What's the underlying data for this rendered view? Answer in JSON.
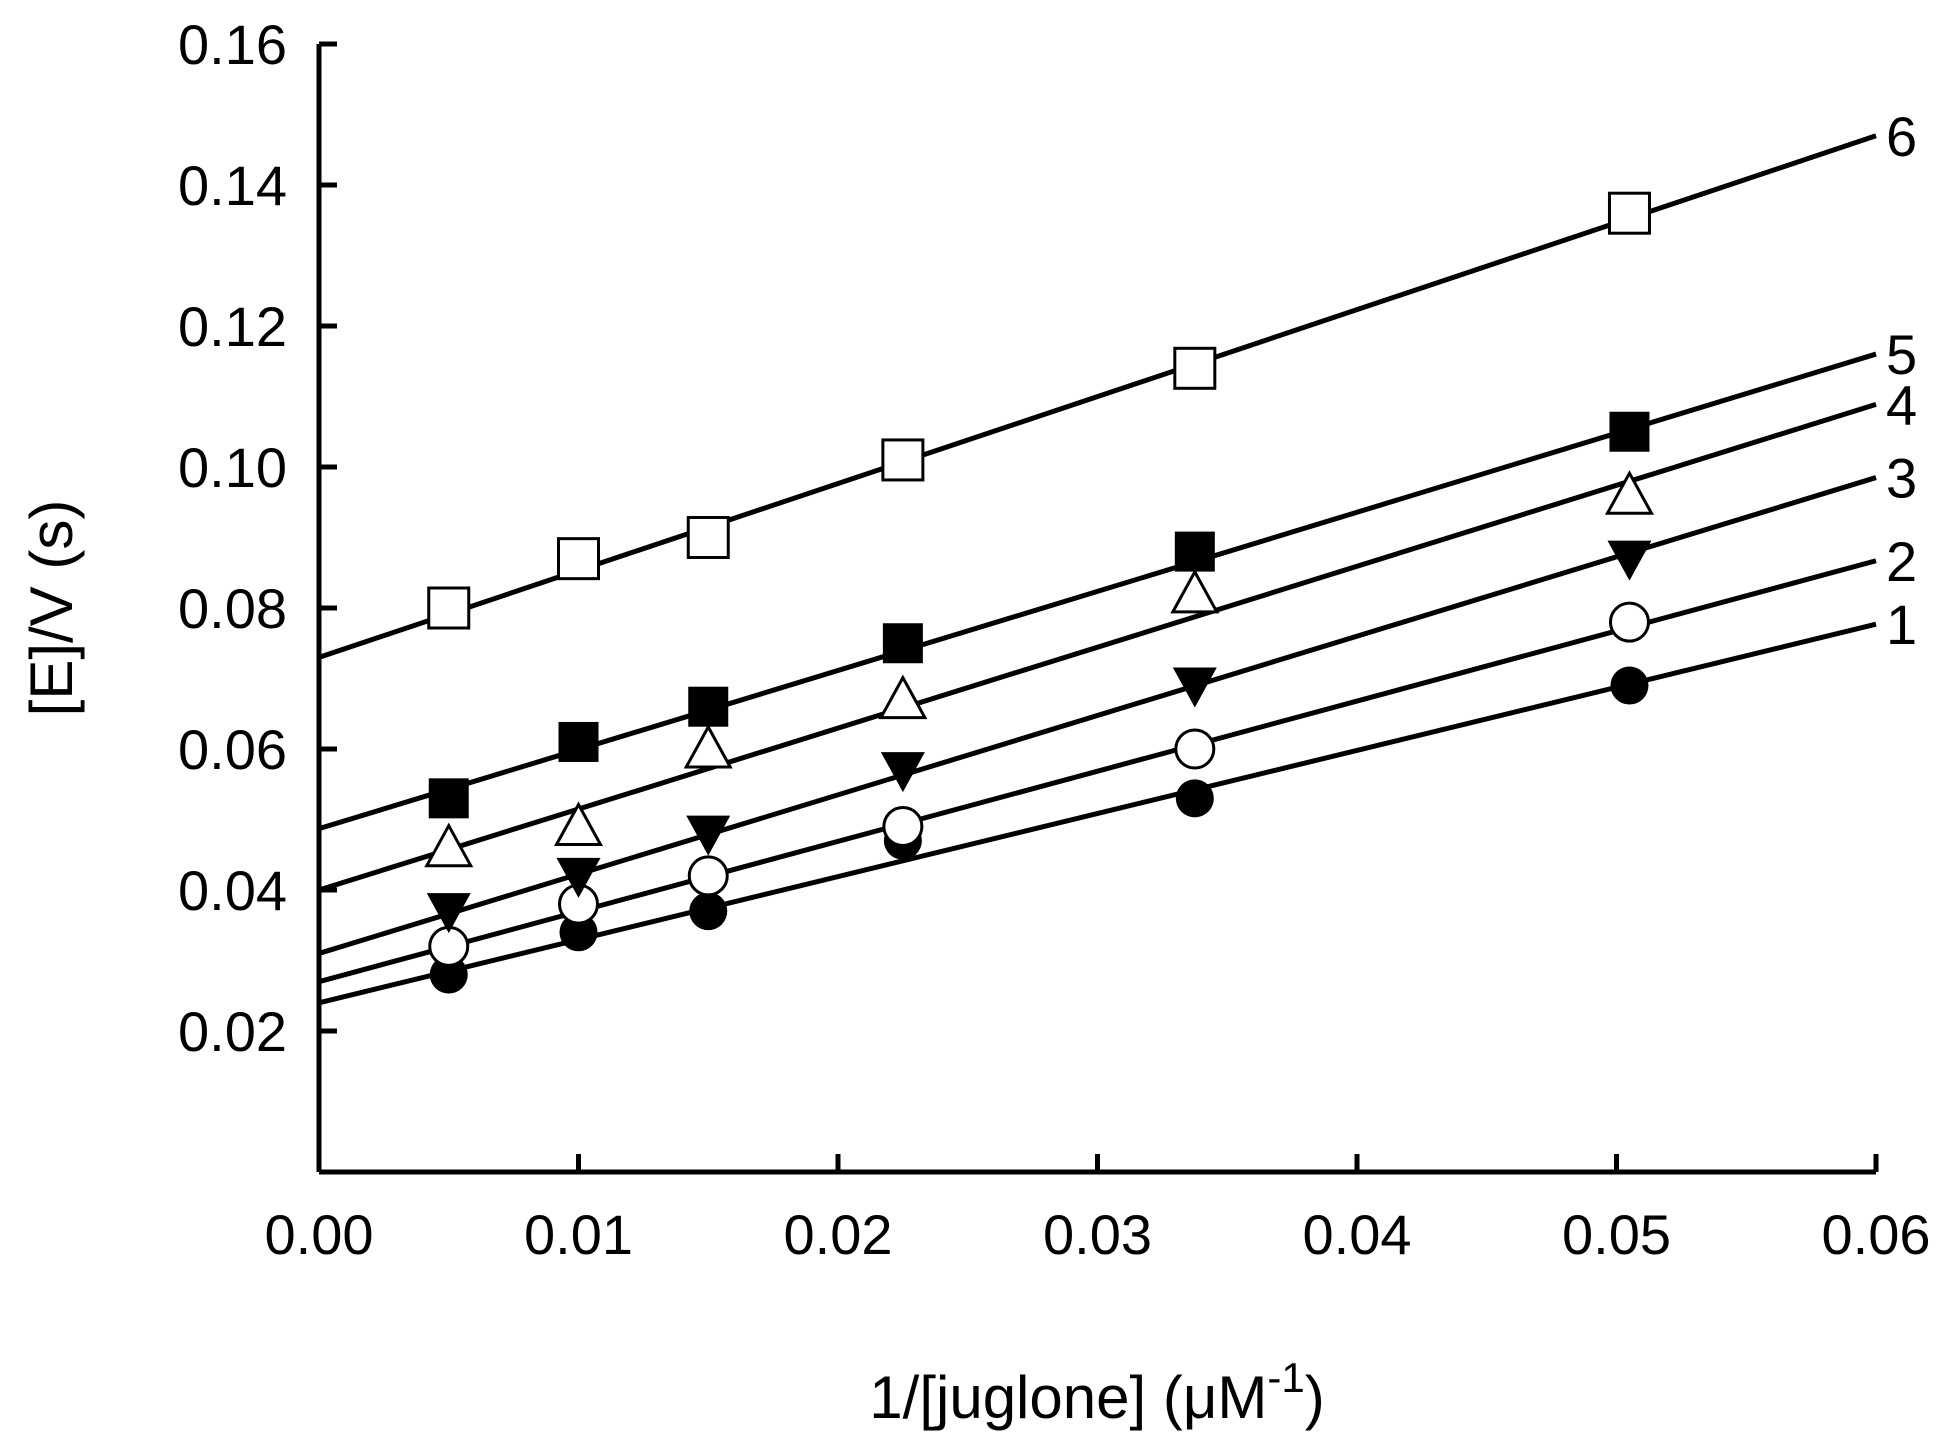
{
  "chart_data": {
    "type": "scatter",
    "title": "",
    "xlabel": "1/[juglone] (μM",
    "xlabel_sup": "-1",
    "xlabel_close": ")",
    "ylabel": "[E]/V (s)",
    "xlim": [
      0,
      0.06
    ],
    "ylim": [
      0,
      0.16
    ],
    "xticks": [
      0.0,
      0.01,
      0.02,
      0.03,
      0.04,
      0.05,
      0.06
    ],
    "xtick_labels": [
      "0.00",
      "0.01",
      "0.02",
      "0.03",
      "0.04",
      "0.05",
      "0.06"
    ],
    "yticks": [
      0.02,
      0.04,
      0.06,
      0.08,
      0.1,
      0.12,
      0.14,
      0.16
    ],
    "ytick_labels": [
      "0.02",
      "0.04",
      "0.06",
      "0.08",
      "0.10",
      "0.12",
      "0.14",
      "0.16"
    ],
    "x": [
      0.005,
      0.01,
      0.015,
      0.0225,
      0.03375,
      0.0505
    ],
    "series": [
      {
        "name": "1",
        "marker": "filled-circle",
        "values": [
          0.028,
          0.034,
          0.037,
          0.047,
          0.053,
          0.069
        ],
        "fit": {
          "intercept": 0.024,
          "slope": 0.895
        }
      },
      {
        "name": "2",
        "marker": "open-circle",
        "values": [
          0.032,
          0.038,
          0.042,
          0.049,
          0.06,
          0.078
        ],
        "fit": {
          "intercept": 0.027,
          "slope": 0.995
        }
      },
      {
        "name": "3",
        "marker": "filled-triangle-down",
        "values": [
          0.037,
          0.042,
          0.048,
          0.057,
          0.069,
          0.087
        ],
        "fit": {
          "intercept": 0.031,
          "slope": 1.125
        }
      },
      {
        "name": "4",
        "marker": "open-triangle-up",
        "values": [
          0.046,
          0.049,
          0.06,
          0.067,
          0.082,
          0.096
        ],
        "fit": {
          "intercept": 0.04,
          "slope": 1.148
        }
      },
      {
        "name": "5",
        "marker": "filled-square",
        "values": [
          0.053,
          0.061,
          0.066,
          0.075,
          0.088,
          0.105
        ],
        "fit": {
          "intercept": 0.0487,
          "slope": 1.122
        }
      },
      {
        "name": "6",
        "marker": "open-square",
        "values": [
          0.08,
          0.087,
          0.09,
          0.101,
          0.114,
          0.136
        ],
        "fit": {
          "intercept": 0.073,
          "slope": 1.233
        }
      }
    ]
  }
}
